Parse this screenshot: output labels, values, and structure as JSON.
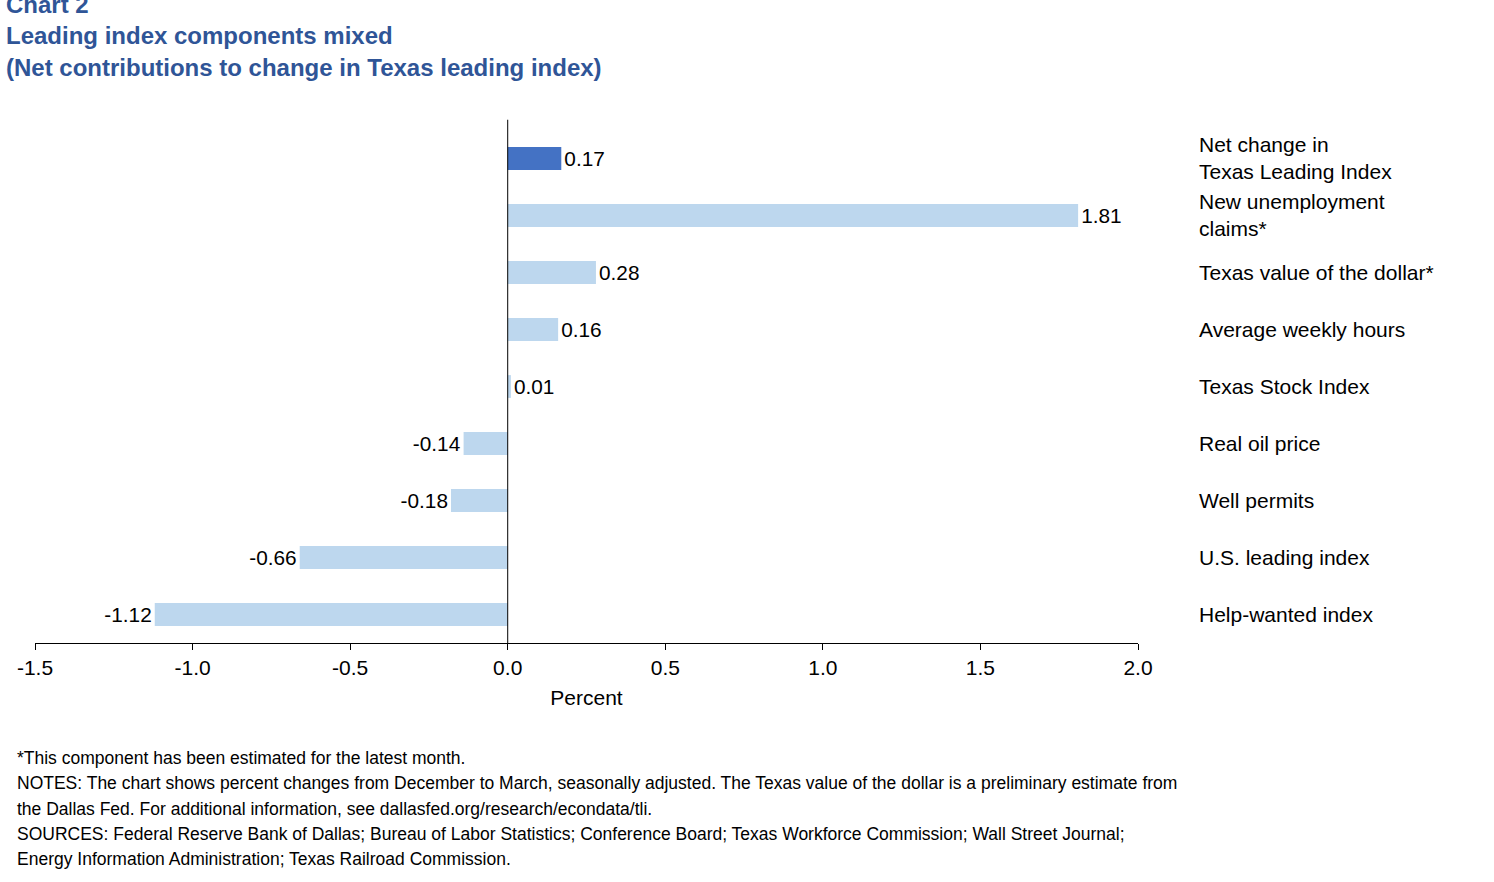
{
  "chart_data": {
    "type": "bar",
    "orientation": "horizontal",
    "title": "Chart 2",
    "subtitle": "Leading index components mixed\n(Net contributions to change in Texas leading index)",
    "x_label": "Percent",
    "categories": [
      "Net change in\nTexas Leading Index",
      "New unemployment\nclaims*",
      "Texas value of the dollar*",
      "Average weekly hours",
      "Texas Stock Index",
      "Real oil price",
      "Well permits",
      "U.S. leading index",
      "Help-wanted index"
    ],
    "values": [
      0.17,
      1.81,
      0.28,
      0.16,
      0.01,
      -0.14,
      -0.18,
      -0.66,
      -1.12
    ],
    "colors": [
      "#4472c4",
      "#bdd7ee",
      "#bdd7ee",
      "#bdd7ee",
      "#bdd7ee",
      "#bdd7ee",
      "#bdd7ee",
      "#bdd7ee",
      "#bdd7ee"
    ],
    "xlim": [
      -1.5,
      2.0
    ],
    "xticks": [
      {
        "value": -1.5,
        "label": "-1.5"
      },
      {
        "value": -1.0,
        "label": "-1.0"
      },
      {
        "value": -0.5,
        "label": "-0.5"
      },
      {
        "value": 0.0,
        "label": "0.0"
      },
      {
        "value": 0.5,
        "label": "0.5"
      },
      {
        "value": 1.0,
        "label": "1.0"
      },
      {
        "value": 1.5,
        "label": "1.5"
      },
      {
        "value": 2.0,
        "label": "2.0"
      }
    ],
    "grid": false,
    "data_labels": true,
    "annotations": [
      "*This component has been estimated for the latest month.",
      "NOTES: The chart shows percent changes from December to March, seasonally adjusted. The Texas value of the dollar is a preliminary estimate from",
      "the Dallas Fed. For additional information, see dallasfed.org/research/econdata/tli.",
      "SOURCES: Federal Reserve Bank of Dallas; Bureau of Labor Statistics; Conference Board; Texas Workforce Commission; Wall Street Journal;",
      "Energy Information Administration; Texas Railroad Commission."
    ]
  }
}
